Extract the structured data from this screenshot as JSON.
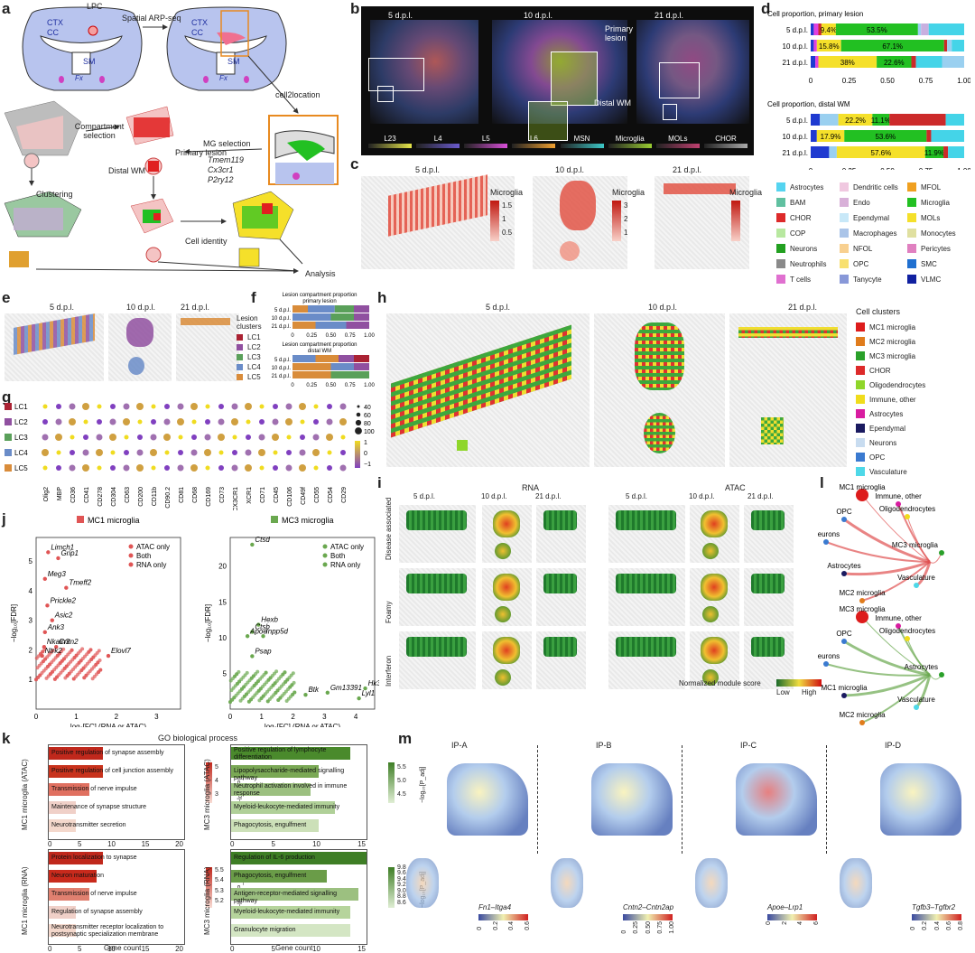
{
  "panel_labels": {
    "a": "a",
    "b": "b",
    "c": "c",
    "d": "d",
    "e": "e",
    "f": "f",
    "g": "g",
    "h": "h",
    "i": "i",
    "j": "j",
    "k": "k",
    "l": "l",
    "m": "m"
  },
  "a": {
    "lpc": "LPC",
    "ctx": "CTX",
    "cc": "CC",
    "sm": "SM",
    "fx": "Fx",
    "arp": "Spatial ARP-seq",
    "cell2location": "cell2location",
    "compartment": "Compartment\nselection",
    "mg_selection": "MG selection",
    "genes": [
      "Tmem119",
      "Cx3cr1",
      "P2ry12"
    ],
    "primary": "Primary lesion",
    "distal": "Distal WM",
    "clustering": "Clustering",
    "identity": "Cell identity",
    "analysis": "Analysis"
  },
  "b": {
    "timepoints": [
      "5 d.p.l.",
      "10 d.p.l.",
      "21 d.p.l."
    ],
    "primary": "Primary\nlesion",
    "distal": "Distal WM",
    "scales": [
      {
        "name": "L23",
        "color": "#e6e64a"
      },
      {
        "name": "L4",
        "color": "#6a5acd"
      },
      {
        "name": "L5",
        "color": "#d94fd9"
      },
      {
        "name": "L6",
        "color": "#f0a030"
      },
      {
        "name": "MSN",
        "color": "#3cc8c8"
      },
      {
        "name": "Microglia",
        "color": "#9acd32"
      },
      {
        "name": "MOLs",
        "color": "#c04070"
      },
      {
        "name": "CHOR",
        "color": "#aaaaaa"
      }
    ]
  },
  "c": {
    "timepoints": [
      "5 d.p.l.",
      "10 d.p.l.",
      "21 d.p.l."
    ],
    "label": "Microglia",
    "scales": [
      [
        "1.5",
        "1",
        "0.5"
      ],
      [
        "3",
        "2",
        "1"
      ],
      [
        "",
        ""
      ]
    ]
  },
  "chart_data": [
    {
      "type": "bar",
      "title": "Cell proportion, primary lesion",
      "categories": [
        "5 d.p.l.",
        "10 d.p.l.",
        "21 d.p.l."
      ],
      "xlim": [
        0,
        1
      ],
      "xticks": [
        "0",
        "0.25",
        "0.50",
        "0.75",
        "1.00"
      ],
      "segments": [
        [
          {
            "c": "#1f3ad0",
            "v": 0.02
          },
          {
            "c": "#e040e0",
            "v": 0.03
          },
          {
            "c": "#cc2a2a",
            "v": 0.02
          },
          {
            "c": "#f5e02a",
            "v": 0.094,
            "label": "9.4%"
          },
          {
            "c": "#22c022",
            "v": 0.535,
            "label": "53.5%"
          },
          {
            "c": "#9ad0f0",
            "v": 0.02
          },
          {
            "c": "#c8b0e0",
            "v": 0.05
          },
          {
            "c": "#44d4e8",
            "v": 0.231
          }
        ],
        [
          {
            "c": "#1f3ad0",
            "v": 0.02
          },
          {
            "c": "#e040e0",
            "v": 0.02
          },
          {
            "c": "#f5e02a",
            "v": 0.158,
            "label": "15.8%"
          },
          {
            "c": "#22c022",
            "v": 0.671,
            "label": "67.1%"
          },
          {
            "c": "#cc2a2a",
            "v": 0.02
          },
          {
            "c": "#9ad0f0",
            "v": 0.03
          },
          {
            "c": "#44d4e8",
            "v": 0.081
          }
        ],
        [
          {
            "c": "#1f3ad0",
            "v": 0.03
          },
          {
            "c": "#e040e0",
            "v": 0.02
          },
          {
            "c": "#f5e02a",
            "v": 0.38,
            "label": "38%"
          },
          {
            "c": "#22c022",
            "v": 0.226,
            "label": "22.6%"
          },
          {
            "c": "#cc2a2a",
            "v": 0.03
          },
          {
            "c": "#44d4e8",
            "v": 0.17
          },
          {
            "c": "#9ad0f0",
            "v": 0.144
          }
        ]
      ]
    },
    {
      "type": "bar",
      "title": "Cell proportion, distal WM",
      "categories": [
        "5 d.p.l.",
        "10 d.p.l.",
        "21 d.p.l."
      ],
      "xlim": [
        0,
        1
      ],
      "xticks": [
        "0",
        "0.25",
        "0.50",
        "0.75",
        "1.00"
      ],
      "segments": [
        [
          {
            "c": "#1f3ad0",
            "v": 0.06
          },
          {
            "c": "#9ad0f0",
            "v": 0.12
          },
          {
            "c": "#f5e02a",
            "v": 0.222,
            "label": "22.2%"
          },
          {
            "c": "#22c022",
            "v": 0.111,
            "label": "11.1%"
          },
          {
            "c": "#cc2a2a",
            "v": 0.367
          },
          {
            "c": "#44d4e8",
            "v": 0.12
          }
        ],
        [
          {
            "c": "#1f3ad0",
            "v": 0.04
          },
          {
            "c": "#f5e02a",
            "v": 0.179,
            "label": "17.9%"
          },
          {
            "c": "#22c022",
            "v": 0.536,
            "label": "53.6%"
          },
          {
            "c": "#cc2a2a",
            "v": 0.03
          },
          {
            "c": "#44d4e8",
            "v": 0.215
          }
        ],
        [
          {
            "c": "#1f3ad0",
            "v": 0.12
          },
          {
            "c": "#9ad0f0",
            "v": 0.05
          },
          {
            "c": "#f5e02a",
            "v": 0.576,
            "label": "57.6%"
          },
          {
            "c": "#22c022",
            "v": 0.119,
            "label": "11.9%"
          },
          {
            "c": "#cc2a2a",
            "v": 0.03
          },
          {
            "c": "#44d4e8",
            "v": 0.105
          }
        ]
      ]
    },
    {
      "type": "bar",
      "title": "Lesion compartment proportion\nprimary lesion",
      "categories": [
        "5 d.p.l.",
        "10 d.p.l.",
        "21 d.p.l."
      ],
      "xticks": [
        "0",
        "0.25",
        "0.50",
        "0.75",
        "1.00"
      ],
      "segments": [
        [
          {
            "c": "#d98c3a",
            "v": 0.2
          },
          {
            "c": "#6a8cc8",
            "v": 0.35
          },
          {
            "c": "#5aa05a",
            "v": 0.25
          },
          {
            "c": "#9050a0",
            "v": 0.2
          }
        ],
        [
          {
            "c": "#6a8cc8",
            "v": 0.5
          },
          {
            "c": "#5aa05a",
            "v": 0.3
          },
          {
            "c": "#9050a0",
            "v": 0.2
          }
        ],
        [
          {
            "c": "#d98c3a",
            "v": 0.3
          },
          {
            "c": "#6a8cc8",
            "v": 0.4
          },
          {
            "c": "#9050a0",
            "v": 0.3
          }
        ]
      ]
    },
    {
      "type": "bar",
      "title": "Lesion compartment proportion\ndistal WM",
      "categories": [
        "5 d.p.l.",
        "10 d.p.l.",
        "21 d.p.l."
      ],
      "xticks": [
        "0",
        "0.25",
        "0.50",
        "0.75",
        "1.00"
      ],
      "segments": [
        [
          {
            "c": "#6a8cc8",
            "v": 0.3
          },
          {
            "c": "#d98c3a",
            "v": 0.3
          },
          {
            "c": "#9050a0",
            "v": 0.2
          },
          {
            "c": "#aa2233",
            "v": 0.2
          }
        ],
        [
          {
            "c": "#d98c3a",
            "v": 0.5
          },
          {
            "c": "#6a8cc8",
            "v": 0.3
          },
          {
            "c": "#9050a0",
            "v": 0.2
          }
        ],
        [
          {
            "c": "#d98c3a",
            "v": 0.5
          },
          {
            "c": "#5aa05a",
            "v": 0.5
          }
        ]
      ]
    }
  ],
  "d_legend": [
    {
      "n": "Astrocytes",
      "c": "#55d4f0"
    },
    {
      "n": "Dendritic cells",
      "c": "#f0c8e0"
    },
    {
      "n": "MFOL",
      "c": "#f0a020"
    },
    {
      "n": "BAM",
      "c": "#60c0a0"
    },
    {
      "n": "Endo",
      "c": "#d8b0d8"
    },
    {
      "n": "Microglia",
      "c": "#22c022"
    },
    {
      "n": "CHOR",
      "c": "#dd2a2a"
    },
    {
      "n": "Ependymal",
      "c": "#c8e8f8"
    },
    {
      "n": "MOLs",
      "c": "#f5e02a"
    },
    {
      "n": "COP",
      "c": "#b8e8a0"
    },
    {
      "n": "Macrophages",
      "c": "#aac4e8"
    },
    {
      "n": "Monocytes",
      "c": "#e0e0a0"
    },
    {
      "n": "Neurons",
      "c": "#22a020"
    },
    {
      "n": "NFOL",
      "c": "#f8d090"
    },
    {
      "n": "Pericytes",
      "c": "#e080c0"
    },
    {
      "n": "Neutrophils",
      "c": "#8a8a8a"
    },
    {
      "n": "OPC",
      "c": "#f8e070"
    },
    {
      "n": "SMC",
      "c": "#2070d0"
    },
    {
      "n": "T cells",
      "c": "#e070d0"
    },
    {
      "n": "Tanycyte",
      "c": "#8898d8"
    },
    {
      "n": "VLMC",
      "c": "#1020a0"
    }
  ],
  "e": {
    "timepoints": [
      "5 d.p.l.",
      "10 d.p.l.",
      "21 d.p.l."
    ],
    "legend_title": "Lesion\nclusters",
    "clusters": [
      {
        "n": "LC1",
        "c": "#aa2233"
      },
      {
        "n": "LC2",
        "c": "#9050a0"
      },
      {
        "n": "LC3",
        "c": "#5aa05a"
      },
      {
        "n": "LC4",
        "c": "#6a8cc8"
      },
      {
        "n": "LC5",
        "c": "#d98c3a"
      }
    ]
  },
  "g": {
    "rows": [
      "LC1",
      "LC2",
      "LC3",
      "LC4",
      "LC5"
    ],
    "row_colors": [
      "#aa2233",
      "#9050a0",
      "#5aa05a",
      "#6a8cc8",
      "#d98c3a"
    ],
    "cols": [
      "Olig2",
      "MBP",
      "CD36",
      "CD41",
      "CD278",
      "CD304",
      "CD63",
      "CD200",
      "CD11b",
      "CD90.2",
      "CD81",
      "CD68",
      "CD169",
      "CD73",
      "CX3CR1",
      "XCR1",
      "CD71",
      "CD45",
      "CD106",
      "CD49f",
      "CD55",
      "CD54",
      "CD29"
    ],
    "size_legend": [
      "40",
      "60",
      "80",
      "100"
    ],
    "color_legend": [
      "1",
      "0",
      "−1"
    ]
  },
  "h": {
    "timepoints": [
      "5 d.p.l.",
      "10 d.p.l.",
      "21 d.p.l."
    ],
    "legend_title": "Cell clusters",
    "clusters": [
      {
        "n": "MC1 microglia",
        "c": "#dd1c1c"
      },
      {
        "n": "MC2 microglia",
        "c": "#e07c1c"
      },
      {
        "n": "MC3 microglia",
        "c": "#2aa02a"
      },
      {
        "n": "CHOR",
        "c": "#dd2a2a"
      },
      {
        "n": "Oligodendrocytes",
        "c": "#8fd62a"
      },
      {
        "n": "Immune, other",
        "c": "#f0dc1c"
      },
      {
        "n": "Astrocytes",
        "c": "#d81ca0"
      },
      {
        "n": "Ependymal",
        "c": "#1a1a60"
      },
      {
        "n": "Neurons",
        "c": "#c8dcf0"
      },
      {
        "n": "OPC",
        "c": "#3a7ad0"
      },
      {
        "n": "Vasculature",
        "c": "#4ed8e8"
      }
    ]
  },
  "i": {
    "groups": [
      "RNA",
      "ATAC"
    ],
    "timepoints": [
      "5 d.p.l.",
      "10 d.p.l.",
      "21 d.p.l."
    ],
    "rows": [
      "Disease associated",
      "Foamy",
      "Interferon"
    ],
    "scale_title": "Normalized module score",
    "low": "Low",
    "high": "High"
  },
  "j": {
    "panels": [
      {
        "title": "MC1 microglia",
        "color": "#e05555",
        "legend": [
          "ATAC only",
          "Both",
          "RNA only"
        ],
        "genes": [
          "Limch1",
          "Grip1",
          "Meg3",
          "Tmeff2",
          "Prickle2",
          "Asic2",
          "Ank3",
          "Nkain3",
          "Cntn2",
          "Ntrk2",
          "Elovl7"
        ],
        "yticks": [
          "1",
          "2",
          "3",
          "4",
          "5"
        ],
        "xticks": [
          "0",
          "1",
          "2",
          "3"
        ]
      },
      {
        "title": "MC3 microglia",
        "color": "#6aa84f",
        "legend": [
          "ATAC only",
          "Both",
          "RNA only"
        ],
        "genes": [
          "Ctsd",
          "Hexb",
          "Ctsb",
          "Apoe",
          "Inpp5d",
          "Psap",
          "Btk",
          "Gm13391",
          "Hk3",
          "Lyl1"
        ],
        "yticks": [
          "5",
          "10",
          "15",
          "20"
        ],
        "xticks": [
          "0",
          "1",
          "2",
          "3",
          "4"
        ]
      }
    ],
    "ylabel": "−log₁₀[FDR]",
    "xlabel": "log₂[FC] (RNA or ATAC)"
  },
  "k": {
    "title": "GO biological process",
    "xlabel": "Gene count",
    "panels": [
      {
        "ylabel": "MC1 microglia (ATAC)",
        "legend": [
          "5",
          "4",
          "3"
        ],
        "legend_title": "−log₁₀[P_adj]",
        "terms": [
          {
            "t": "Positive regulation of synapse assembly",
            "v": 8,
            "c": "#c0281c"
          },
          {
            "t": "Positive regulation of cell junction assembly",
            "v": 8,
            "c": "#c8321c"
          },
          {
            "t": "Transmission of nerve impulse",
            "v": 6,
            "c": "#e07060"
          },
          {
            "t": "Maintenance of synapse structure",
            "v": 4,
            "c": "#f0d0c8"
          },
          {
            "t": "Neurotransmitter secretion",
            "v": 4,
            "c": "#f4d8cc"
          }
        ],
        "xticks": [
          "0",
          "5",
          "10",
          "15",
          "20"
        ],
        "xmax": 20
      },
      {
        "ylabel": "MC3 microglia (ATAC)",
        "legend": [
          "5.5",
          "5.0",
          "4.5"
        ],
        "legend_title": "−log₁₀[P_adj]",
        "terms": [
          {
            "t": "Positive regulation of lymphocyte differentiation",
            "v": 15,
            "c": "#4a8a2c"
          },
          {
            "t": "Lipopolysaccharide-mediated signalling pathway",
            "v": 11,
            "c": "#7aa855"
          },
          {
            "t": "Neutrophil activation involved in immune response",
            "v": 10,
            "c": "#9cc080"
          },
          {
            "t": "Myeloid-leukocyte-mediated immunity",
            "v": 13,
            "c": "#b0d098"
          },
          {
            "t": "Phagocytosis, engulfment",
            "v": 11,
            "c": "#cce0b8"
          }
        ],
        "xticks": [
          "0",
          "5",
          "10",
          "15"
        ],
        "xmax": 17
      },
      {
        "ylabel": "MC1 microglia (RNA)",
        "legend": [
          "5.5",
          "5.4",
          "5.3",
          "5.2"
        ],
        "legend_title": "−log₁₀[P_adj]",
        "terms": [
          {
            "t": "Protein localization to synapse",
            "v": 8,
            "c": "#c0281c"
          },
          {
            "t": "Neuron maturation",
            "v": 7,
            "c": "#c82a1c"
          },
          {
            "t": "Transmission of nerve impulse",
            "v": 6,
            "c": "#e08070"
          },
          {
            "t": "Regulation of synapse assembly",
            "v": 4,
            "c": "#f0d0c8"
          },
          {
            "t": "Neurotransmitter receptor localization to postsynaptic specialization membrane",
            "v": 4,
            "c": "#f4d8cc"
          }
        ],
        "xticks": [
          "0",
          "5",
          "10",
          "15",
          "20"
        ],
        "xmax": 20
      },
      {
        "ylabel": "MC3 microglia (RNA)",
        "legend": [
          "9.8",
          "9.6",
          "9.4",
          "9.2",
          "9.0",
          "8.8",
          "8.6"
        ],
        "legend_title": "−log₁₀[P_adj]",
        "terms": [
          {
            "t": "Regulation of IL-6 production",
            "v": 17,
            "c": "#3e7e25"
          },
          {
            "t": "Phagocytosis, engulfment",
            "v": 12,
            "c": "#6a9c48"
          },
          {
            "t": "Antigen-receptor-mediated signalling pathway",
            "v": 16,
            "c": "#9cc080"
          },
          {
            "t": "Myeloid-leukocyte-mediated immunity",
            "v": 15,
            "c": "#b6d49c"
          },
          {
            "t": "Granulocyte migration",
            "v": 15,
            "c": "#d4e6c4"
          }
        ],
        "xticks": [
          "0",
          "5",
          "10",
          "15"
        ],
        "xmax": 17
      }
    ]
  },
  "l": {
    "nodes_top": [
      "MC1 microglia",
      "Immune, other",
      "OPC",
      "Oligodendrocytes",
      "Neurons",
      "Astrocytes",
      "MC3 microglia",
      "MC2 microglia",
      "Vasculature"
    ],
    "nodes_bottom": [
      "MC3 microglia",
      "Immune, other",
      "OPC",
      "Oligodendrocytes",
      "Neurons",
      "MC1 microglia",
      "Astrocytes",
      "MC2 microglia",
      "Vasculature"
    ]
  },
  "m": {
    "panels": [
      {
        "title": "IP-A",
        "pair": "Fn1–Itga4",
        "ticks": [
          "0",
          "0.2",
          "0.4",
          "0.6"
        ]
      },
      {
        "title": "IP-B",
        "pair": "Cntn2–Cntn2ap",
        "ticks": [
          "0",
          "0.25",
          "0.50",
          "0.75",
          "1.00"
        ]
      },
      {
        "title": "IP-C",
        "pair": "Apoe–Lrp1",
        "ticks": [
          "0",
          "2",
          "4",
          "6"
        ]
      },
      {
        "title": "IP-D",
        "pair": "Tgfb3–Tgfbr2",
        "ticks": [
          "0",
          "0.2",
          "0.4",
          "0.6",
          "0.8"
        ]
      }
    ]
  }
}
